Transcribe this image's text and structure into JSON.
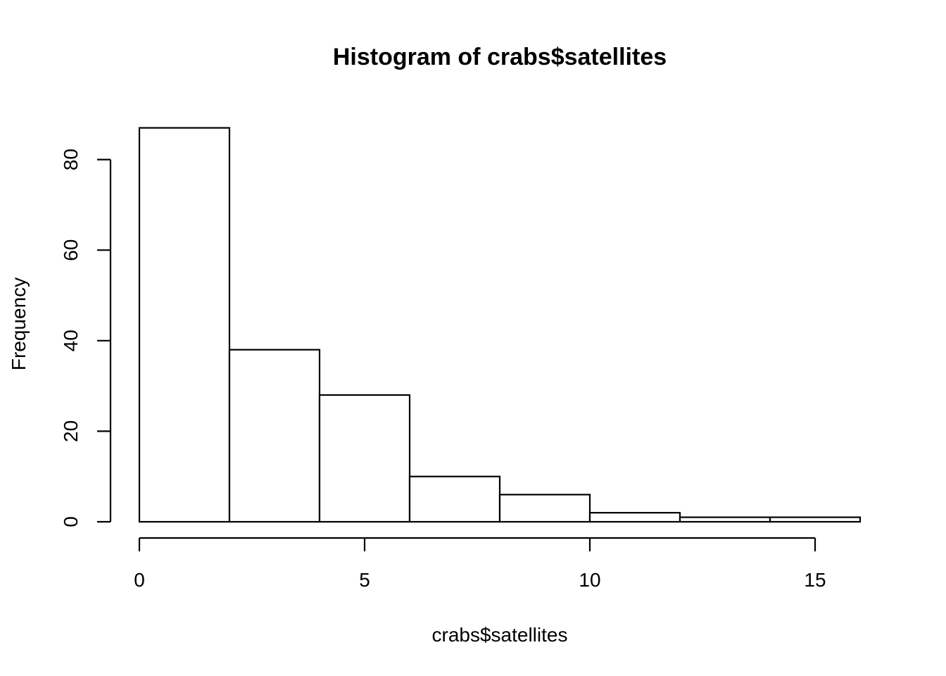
{
  "chart_data": {
    "type": "bar",
    "title": "Histogram of crabs$satellites",
    "xlabel": "crabs$satellites",
    "ylabel": "Frequency",
    "bins": [
      {
        "start": 0,
        "end": 2,
        "count": 87
      },
      {
        "start": 2,
        "end": 4,
        "count": 38
      },
      {
        "start": 4,
        "end": 6,
        "count": 28
      },
      {
        "start": 6,
        "end": 8,
        "count": 10
      },
      {
        "start": 8,
        "end": 10,
        "count": 6
      },
      {
        "start": 10,
        "end": 12,
        "count": 2
      },
      {
        "start": 12,
        "end": 14,
        "count": 1
      },
      {
        "start": 14,
        "end": 16,
        "count": 1
      }
    ],
    "x_ticks": [
      0,
      5,
      10,
      15
    ],
    "y_ticks": [
      0,
      20,
      40,
      60,
      80
    ],
    "xlim": [
      0,
      16
    ],
    "ylim": [
      0,
      87
    ],
    "grid": false,
    "legend": "none"
  }
}
